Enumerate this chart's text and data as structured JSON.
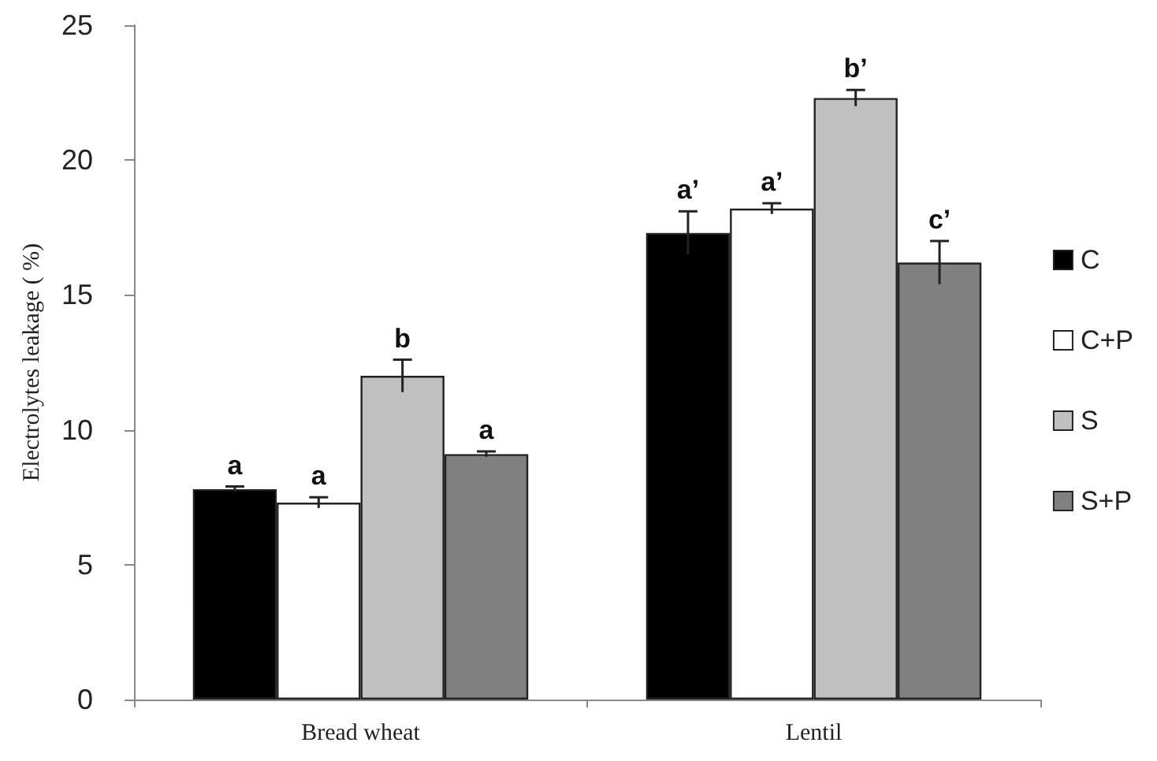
{
  "chart_data": {
    "type": "bar",
    "ylabel": "Electrolytes leakage ( %)",
    "categories": [
      "Bread wheat",
      "Lentil"
    ],
    "series": [
      {
        "name": "C",
        "color": "#000000",
        "values": [
          7.8,
          17.3
        ],
        "errors": [
          0.1,
          0.8
        ],
        "value_labels": [
          "a",
          "a’"
        ]
      },
      {
        "name": "C+P",
        "color": "#ffffff",
        "values": [
          7.3,
          18.2
        ],
        "errors": [
          0.2,
          0.2
        ],
        "value_labels": [
          "a",
          "a’"
        ]
      },
      {
        "name": "S",
        "color": "#c0c0c0",
        "values": [
          12.0,
          22.3
        ],
        "errors": [
          0.6,
          0.3
        ],
        "value_labels": [
          "b",
          "b’"
        ]
      },
      {
        "name": "S+P",
        "color": "#808080",
        "values": [
          9.1,
          16.2
        ],
        "errors": [
          0.1,
          0.8
        ],
        "value_labels": [
          "a",
          "c’"
        ]
      }
    ],
    "ylim": [
      0,
      25
    ],
    "yticks": [
      0,
      5,
      10,
      15,
      20,
      25
    ],
    "grid": false,
    "legend": "right"
  }
}
